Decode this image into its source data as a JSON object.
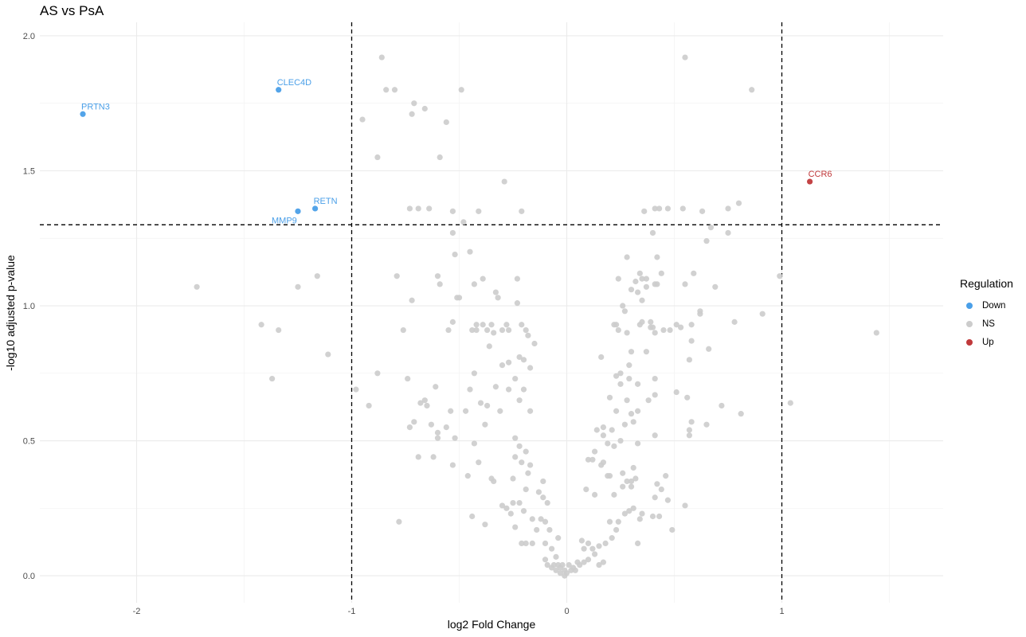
{
  "chart_data": {
    "type": "scatter",
    "title": "AS vs PsA",
    "xlabel": "log2 Fold Change",
    "ylabel": "-log10 adjusted p-value",
    "xlim": [
      -2.45,
      1.75
    ],
    "ylim": [
      -0.1,
      2.05
    ],
    "x_ticks": [
      -2,
      -1,
      0,
      1
    ],
    "y_ticks": [
      0.0,
      0.5,
      1.0,
      1.5,
      2.0
    ],
    "x_tick_labels": [
      "-2",
      "-1",
      "0",
      "1"
    ],
    "y_tick_labels": [
      "0.0",
      "0.5",
      "1.0",
      "1.5",
      "2.0"
    ],
    "thresholds": {
      "x": [
        -1,
        1
      ],
      "y": 1.3
    },
    "grid": true,
    "legend_title": "Regulation",
    "legend_position": "right",
    "colors": {
      "Down": "#4a9fe8",
      "NS": "#cccccc",
      "Up": "#c0393b"
    },
    "series": [
      {
        "name": "Down",
        "points": [
          [
            -2.25,
            1.71,
            "PRTN3"
          ],
          [
            -1.34,
            1.8,
            "CLEC4D"
          ],
          [
            -1.17,
            1.36,
            "RETN"
          ],
          [
            -1.25,
            1.35,
            "MMP9"
          ]
        ]
      },
      {
        "name": "Up",
        "points": [
          [
            1.13,
            1.46,
            "CCR6"
          ]
        ]
      },
      {
        "name": "NS",
        "points": [
          [
            -0.86,
            1.92
          ],
          [
            -0.84,
            1.8
          ],
          [
            -0.8,
            1.8
          ],
          [
            -0.49,
            1.8
          ],
          [
            -0.71,
            1.75
          ],
          [
            -0.66,
            1.73
          ],
          [
            -0.72,
            1.71
          ],
          [
            -0.95,
            1.69
          ],
          [
            -0.56,
            1.68
          ],
          [
            -0.88,
            1.55
          ],
          [
            -0.59,
            1.55
          ],
          [
            -0.29,
            1.46
          ],
          [
            -0.73,
            1.36
          ],
          [
            -0.69,
            1.36
          ],
          [
            -0.64,
            1.36
          ],
          [
            -0.53,
            1.35
          ],
          [
            -0.41,
            1.35
          ],
          [
            -0.21,
            1.35
          ],
          [
            -0.48,
            1.31
          ],
          [
            -0.53,
            1.27
          ],
          [
            -0.45,
            1.2
          ],
          [
            -0.52,
            1.19
          ],
          [
            -0.79,
            1.11
          ],
          [
            -0.6,
            1.11
          ],
          [
            -0.39,
            1.1
          ],
          [
            -0.23,
            1.1
          ],
          [
            -0.59,
            1.08
          ],
          [
            -0.43,
            1.08
          ],
          [
            -0.33,
            1.05
          ],
          [
            -0.32,
            1.03
          ],
          [
            -0.5,
            1.03
          ],
          [
            -0.51,
            1.03
          ],
          [
            -0.72,
            1.02
          ],
          [
            -0.23,
            1.01
          ],
          [
            -0.42,
            0.93
          ],
          [
            -0.39,
            0.93
          ],
          [
            -0.35,
            0.93
          ],
          [
            -0.28,
            0.93
          ],
          [
            -0.21,
            0.93
          ],
          [
            -0.53,
            0.94
          ],
          [
            -0.76,
            0.91
          ],
          [
            -0.55,
            0.91
          ],
          [
            -0.44,
            0.91
          ],
          [
            -0.42,
            0.91
          ],
          [
            -0.37,
            0.91
          ],
          [
            -0.3,
            0.91
          ],
          [
            -0.27,
            0.91
          ],
          [
            -0.19,
            0.91
          ],
          [
            -0.34,
            0.9
          ],
          [
            -0.18,
            0.89
          ],
          [
            -0.15,
            0.86
          ],
          [
            -0.36,
            0.85
          ],
          [
            -0.27,
            0.79
          ],
          [
            -0.22,
            0.81
          ],
          [
            -0.2,
            0.8
          ],
          [
            -0.3,
            0.78
          ],
          [
            -0.17,
            0.77
          ],
          [
            -0.88,
            0.75
          ],
          [
            -0.43,
            0.75
          ],
          [
            -0.24,
            0.73
          ],
          [
            -0.74,
            0.73
          ],
          [
            -0.61,
            0.7
          ],
          [
            -0.45,
            0.69
          ],
          [
            -0.33,
            0.7
          ],
          [
            -0.27,
            0.69
          ],
          [
            -0.2,
            0.69
          ],
          [
            -0.98,
            0.69
          ],
          [
            -0.66,
            0.65
          ],
          [
            -0.65,
            0.63
          ],
          [
            -0.68,
            0.64
          ],
          [
            -0.4,
            0.64
          ],
          [
            -0.37,
            0.63
          ],
          [
            -0.22,
            0.65
          ],
          [
            -0.54,
            0.61
          ],
          [
            -0.47,
            0.61
          ],
          [
            -0.31,
            0.61
          ],
          [
            -0.17,
            0.61
          ],
          [
            -0.92,
            0.63
          ],
          [
            -0.71,
            0.57
          ],
          [
            -0.63,
            0.56
          ],
          [
            -0.6,
            0.53
          ],
          [
            -0.73,
            0.55
          ],
          [
            -0.56,
            0.55
          ],
          [
            -0.38,
            0.56
          ],
          [
            -0.6,
            0.51
          ],
          [
            -0.52,
            0.51
          ],
          [
            -0.24,
            0.51
          ],
          [
            -0.43,
            0.49
          ],
          [
            -0.22,
            0.48
          ],
          [
            -0.19,
            0.46
          ],
          [
            -0.24,
            0.44
          ],
          [
            -0.21,
            0.42
          ],
          [
            -0.69,
            0.44
          ],
          [
            -0.62,
            0.44
          ],
          [
            -0.41,
            0.42
          ],
          [
            -0.53,
            0.41
          ],
          [
            -0.17,
            0.41
          ],
          [
            -0.18,
            0.38
          ],
          [
            -0.46,
            0.37
          ],
          [
            -0.25,
            0.36
          ],
          [
            -0.35,
            0.36
          ],
          [
            -0.34,
            0.35
          ],
          [
            -0.11,
            0.35
          ],
          [
            -0.19,
            0.32
          ],
          [
            -0.13,
            0.31
          ],
          [
            -0.25,
            0.27
          ],
          [
            -0.22,
            0.27
          ],
          [
            -0.11,
            0.29
          ],
          [
            -0.09,
            0.27
          ],
          [
            -0.3,
            0.26
          ],
          [
            -0.28,
            0.25
          ],
          [
            -0.26,
            0.23
          ],
          [
            -0.2,
            0.24
          ],
          [
            -0.16,
            0.21
          ],
          [
            -0.12,
            0.21
          ],
          [
            -0.1,
            0.2
          ],
          [
            -0.44,
            0.22
          ],
          [
            -0.78,
            0.2
          ],
          [
            -0.38,
            0.19
          ],
          [
            -0.24,
            0.18
          ],
          [
            -0.14,
            0.17
          ],
          [
            -0.08,
            0.17
          ],
          [
            -0.04,
            0.14
          ],
          [
            -0.19,
            0.12
          ],
          [
            -0.16,
            0.12
          ],
          [
            -0.1,
            0.12
          ],
          [
            -0.07,
            0.1
          ],
          [
            -0.21,
            0.12
          ],
          [
            -0.05,
            0.07
          ],
          [
            -0.1,
            0.06
          ],
          [
            -0.09,
            0.04
          ],
          [
            -0.07,
            0.03
          ],
          [
            -0.06,
            0.04
          ],
          [
            -0.04,
            0.04
          ],
          [
            -0.03,
            0.03
          ],
          [
            -0.02,
            0.04
          ],
          [
            -0.01,
            0.02
          ],
          [
            0.01,
            0.04
          ],
          [
            -0.03,
            0.01
          ],
          [
            -0.01,
            0.0
          ],
          [
            0.0,
            0.01
          ],
          [
            0.02,
            0.02
          ],
          [
            0.03,
            0.03
          ],
          [
            0.04,
            0.02
          ],
          [
            -0.05,
            0.02
          ],
          [
            0.05,
            0.05
          ],
          [
            0.06,
            0.04
          ],
          [
            0.08,
            0.1
          ],
          [
            0.07,
            0.13
          ],
          [
            0.1,
            0.12
          ],
          [
            0.12,
            0.1
          ],
          [
            0.13,
            0.08
          ],
          [
            0.15,
            0.11
          ],
          [
            0.08,
            0.05
          ],
          [
            0.1,
            0.06
          ],
          [
            0.15,
            0.04
          ],
          [
            0.17,
            0.05
          ],
          [
            0.18,
            0.12
          ],
          [
            0.2,
            0.2
          ],
          [
            0.23,
            0.17
          ],
          [
            0.21,
            0.14
          ],
          [
            0.24,
            0.2
          ],
          [
            0.27,
            0.23
          ],
          [
            0.29,
            0.24
          ],
          [
            0.33,
            0.12
          ],
          [
            0.31,
            0.25
          ],
          [
            0.35,
            0.23
          ],
          [
            0.34,
            0.21
          ],
          [
            0.4,
            0.22
          ],
          [
            0.43,
            0.22
          ],
          [
            0.49,
            0.17
          ],
          [
            0.55,
            0.26
          ],
          [
            0.47,
            0.28
          ],
          [
            0.41,
            0.29
          ],
          [
            0.44,
            0.32
          ],
          [
            0.42,
            0.34
          ],
          [
            0.46,
            0.37
          ],
          [
            0.26,
            0.33
          ],
          [
            0.3,
            0.33
          ],
          [
            0.09,
            0.32
          ],
          [
            0.13,
            0.3
          ],
          [
            0.22,
            0.3
          ],
          [
            0.28,
            0.35
          ],
          [
            0.3,
            0.35
          ],
          [
            0.32,
            0.36
          ],
          [
            0.31,
            0.4
          ],
          [
            0.26,
            0.38
          ],
          [
            0.2,
            0.37
          ],
          [
            0.19,
            0.37
          ],
          [
            0.16,
            0.41
          ],
          [
            0.17,
            0.42
          ],
          [
            0.1,
            0.43
          ],
          [
            0.12,
            0.43
          ],
          [
            0.13,
            0.46
          ],
          [
            0.19,
            0.49
          ],
          [
            0.22,
            0.48
          ],
          [
            0.25,
            0.5
          ],
          [
            0.33,
            0.49
          ],
          [
            0.17,
            0.52
          ],
          [
            0.14,
            0.54
          ],
          [
            0.17,
            0.55
          ],
          [
            0.21,
            0.54
          ],
          [
            0.27,
            0.56
          ],
          [
            0.31,
            0.57
          ],
          [
            0.41,
            0.52
          ],
          [
            0.3,
            0.6
          ],
          [
            0.23,
            0.61
          ],
          [
            0.33,
            0.61
          ],
          [
            0.28,
            0.65
          ],
          [
            0.2,
            0.66
          ],
          [
            0.25,
            0.71
          ],
          [
            0.23,
            0.74
          ],
          [
            0.25,
            0.75
          ],
          [
            0.29,
            0.73
          ],
          [
            0.41,
            0.73
          ],
          [
            0.33,
            0.71
          ],
          [
            0.29,
            0.78
          ],
          [
            0.16,
            0.81
          ],
          [
            0.3,
            0.83
          ],
          [
            0.37,
            0.83
          ],
          [
            0.28,
            0.9
          ],
          [
            0.34,
            0.93
          ],
          [
            0.35,
            0.94
          ],
          [
            0.4,
            0.92
          ],
          [
            0.41,
            0.9
          ],
          [
            0.45,
            0.91
          ],
          [
            0.48,
            0.91
          ],
          [
            0.51,
            0.93
          ],
          [
            0.53,
            0.92
          ],
          [
            0.58,
            0.93
          ],
          [
            0.24,
            0.91
          ],
          [
            0.23,
            0.93
          ],
          [
            0.22,
            0.93
          ],
          [
            0.27,
            0.98
          ],
          [
            0.39,
            0.92
          ],
          [
            0.39,
            0.94
          ],
          [
            0.58,
            0.87
          ],
          [
            0.62,
            0.97
          ],
          [
            0.62,
            0.98
          ],
          [
            0.66,
            0.84
          ],
          [
            0.57,
            0.8
          ],
          [
            0.26,
            1.0
          ],
          [
            0.35,
            1.02
          ],
          [
            0.3,
            1.06
          ],
          [
            0.33,
            1.05
          ],
          [
            0.37,
            1.07
          ],
          [
            0.41,
            1.08
          ],
          [
            0.55,
            1.08
          ],
          [
            0.32,
            1.09
          ],
          [
            0.35,
            1.1
          ],
          [
            0.24,
            1.1
          ],
          [
            0.42,
            1.08
          ],
          [
            0.34,
            1.12
          ],
          [
            0.59,
            1.12
          ],
          [
            0.37,
            1.1
          ],
          [
            0.44,
            1.12
          ],
          [
            0.69,
            1.07
          ],
          [
            0.28,
            1.18
          ],
          [
            0.42,
            1.18
          ],
          [
            0.4,
            1.27
          ],
          [
            0.65,
            1.24
          ],
          [
            0.67,
            1.29
          ],
          [
            0.75,
            1.27
          ],
          [
            0.36,
            1.35
          ],
          [
            0.41,
            1.36
          ],
          [
            0.43,
            1.36
          ],
          [
            0.47,
            1.36
          ],
          [
            0.54,
            1.36
          ],
          [
            0.63,
            1.35
          ],
          [
            0.75,
            1.36
          ],
          [
            0.8,
            1.38
          ],
          [
            0.55,
            1.92
          ],
          [
            0.86,
            1.8
          ],
          [
            0.78,
            0.94
          ],
          [
            0.91,
            0.97
          ],
          [
            0.99,
            1.11
          ],
          [
            1.04,
            0.64
          ],
          [
            0.81,
            0.6
          ],
          [
            0.72,
            0.63
          ],
          [
            0.65,
            0.56
          ],
          [
            0.57,
            0.54
          ],
          [
            0.57,
            0.52
          ],
          [
            0.58,
            0.57
          ],
          [
            0.56,
            0.66
          ],
          [
            0.51,
            0.68
          ],
          [
            0.41,
            0.67
          ],
          [
            0.38,
            0.65
          ],
          [
            1.44,
            0.9
          ],
          [
            -1.72,
            1.07
          ],
          [
            -1.42,
            0.93
          ],
          [
            -1.34,
            0.91
          ],
          [
            -1.37,
            0.73
          ],
          [
            -1.25,
            1.07
          ],
          [
            -1.16,
            1.11
          ],
          [
            -1.11,
            0.82
          ]
        ]
      }
    ]
  }
}
